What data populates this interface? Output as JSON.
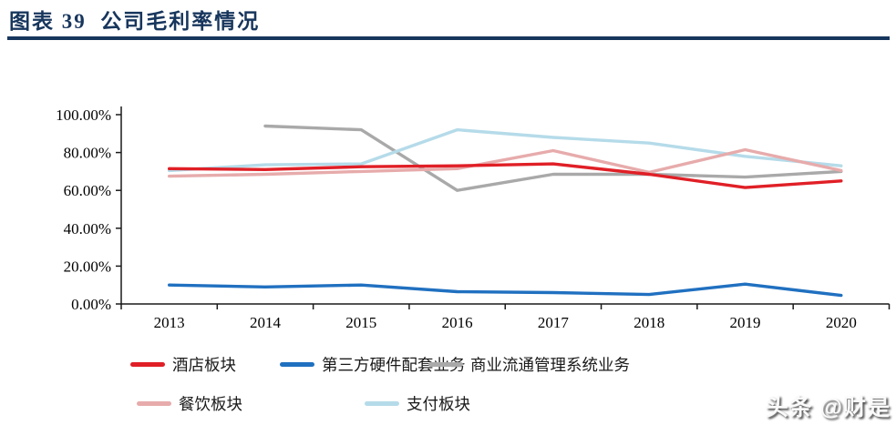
{
  "header": {
    "title": "图表 39  公司毛利率情况"
  },
  "watermark": {
    "text": "头条 @财是"
  },
  "chart_data": {
    "type": "line",
    "title": "公司毛利率情况",
    "categories": [
      "2013",
      "2014",
      "2015",
      "2016",
      "2017",
      "2018",
      "2019",
      "2020"
    ],
    "series": [
      {
        "name": "酒店板块",
        "color": "#e01f26",
        "values": [
          71.5,
          71,
          72.5,
          73,
          74,
          68.5,
          61.5,
          65
        ]
      },
      {
        "name": "第三方硬件配套业务",
        "color": "#2070c0",
        "values": [
          10,
          9,
          10,
          6.5,
          6,
          5,
          10.5,
          4.5
        ]
      },
      {
        "name": "商业流通管理系统业务",
        "color": "#a9a9a9",
        "values": [
          null,
          94,
          92,
          60,
          68.5,
          68.5,
          67,
          70
        ]
      },
      {
        "name": "餐饮板块",
        "color": "#e7abab",
        "values": [
          67.5,
          68.5,
          70,
          71.5,
          81,
          69.5,
          81.5,
          70.5
        ]
      },
      {
        "name": "支付板块",
        "color": "#b5dbe9",
        "values": [
          70.5,
          73.5,
          74,
          92,
          88,
          85,
          78,
          73
        ]
      }
    ],
    "ylim": [
      0,
      100
    ],
    "ytick_labels": [
      "0.00%",
      "20.00%",
      "40.00%",
      "60.00%",
      "80.00%",
      "100.00%"
    ],
    "grid": false,
    "legend_position": "bottom",
    "axis_color": "#1a1a1a"
  }
}
